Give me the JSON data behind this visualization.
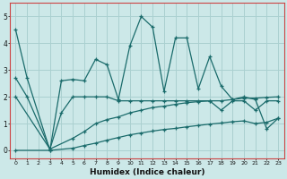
{
  "title": "",
  "xlabel": "Humidex (Indice chaleur)",
  "xlim": [
    -0.5,
    23.5
  ],
  "ylim": [
    -0.3,
    5.5
  ],
  "xticks": [
    0,
    1,
    2,
    3,
    4,
    5,
    6,
    7,
    8,
    9,
    10,
    11,
    12,
    13,
    14,
    15,
    16,
    17,
    18,
    19,
    20,
    21,
    22,
    23
  ],
  "yticks": [
    0,
    1,
    2,
    3,
    4,
    5
  ],
  "bg_color": "#cce8e8",
  "line_color": "#1a6b6b",
  "grid_color": "#aad0d0",
  "spine_color": "#cc4444",
  "series": [
    {
      "x": [
        0,
        1,
        3,
        4,
        5,
        6,
        7,
        8,
        9,
        10,
        11,
        12,
        13,
        14,
        15,
        16,
        17,
        18,
        19,
        20,
        21,
        22,
        23
      ],
      "y": [
        4.5,
        2.7,
        0.0,
        2.6,
        2.65,
        2.6,
        3.4,
        3.2,
        1.9,
        3.9,
        5.0,
        4.6,
        2.2,
        4.2,
        4.2,
        2.3,
        3.5,
        2.4,
        1.9,
        2.0,
        1.9,
        0.8,
        1.2
      ]
    },
    {
      "x": [
        0,
        1,
        3,
        4,
        5,
        6,
        7,
        8,
        9,
        10,
        11,
        12,
        13,
        14,
        15,
        16,
        17,
        18,
        19,
        20,
        21,
        22,
        23
      ],
      "y": [
        2.7,
        2.0,
        0.05,
        1.4,
        2.0,
        2.0,
        2.0,
        2.0,
        1.85,
        1.85,
        1.85,
        1.85,
        1.85,
        1.85,
        1.85,
        1.85,
        1.85,
        1.5,
        1.85,
        1.85,
        1.5,
        1.85,
        1.85
      ]
    },
    {
      "x": [
        0,
        3,
        5,
        6,
        7,
        8,
        9,
        10,
        11,
        12,
        13,
        14,
        15,
        16,
        17,
        18,
        19,
        20,
        21,
        22,
        23
      ],
      "y": [
        2.0,
        0.05,
        0.45,
        0.7,
        1.0,
        1.15,
        1.25,
        1.4,
        1.5,
        1.6,
        1.65,
        1.72,
        1.78,
        1.82,
        1.85,
        1.85,
        1.9,
        1.95,
        1.95,
        1.98,
        2.0
      ]
    },
    {
      "x": [
        0,
        3,
        5,
        6,
        7,
        8,
        9,
        10,
        11,
        12,
        13,
        14,
        15,
        16,
        17,
        18,
        19,
        20,
        21,
        22,
        23
      ],
      "y": [
        0.0,
        0.0,
        0.08,
        0.18,
        0.27,
        0.38,
        0.48,
        0.58,
        0.65,
        0.72,
        0.78,
        0.82,
        0.88,
        0.93,
        0.98,
        1.02,
        1.07,
        1.1,
        1.0,
        1.05,
        1.2
      ]
    }
  ]
}
